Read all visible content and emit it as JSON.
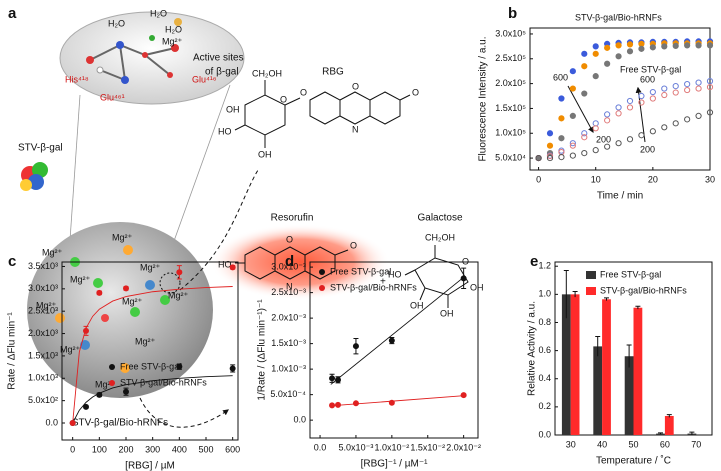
{
  "schematic": {
    "panel": "a",
    "water": [
      "H₂O",
      "H₂O",
      "H₂O"
    ],
    "metal": "Mg²⁺",
    "residues": [
      "His⁴¹⁸",
      "Glu⁴⁶¹",
      "Glu⁴¹⁶"
    ],
    "active_sites": [
      "Active sites",
      "of β-gal"
    ],
    "enzyme": "STV-β-gal",
    "mg_labels": [
      "Mg²⁺",
      "Mg²⁺",
      "Mg²⁺",
      "Mg²⁺",
      "Mg²⁺",
      "Mg²⁺",
      "Mg²⁺",
      "Mg²⁺",
      "Mg²⁺",
      "Mg²⁺"
    ],
    "carrier": "STV-β-gal/Bio-hRNFs",
    "substrate": "RBG",
    "product": "Resorufin",
    "sugar": "Galactose",
    "plus": "+",
    "rbg_atoms": [
      "CH₂OH",
      "HO",
      "OH",
      "O",
      "OH",
      "O",
      "O",
      "N",
      "O"
    ],
    "resorufin_atoms": [
      "HO",
      "O",
      "N",
      "O"
    ],
    "galactose_atoms": [
      "CH₂OH",
      "HO",
      "O",
      "OH",
      "OH",
      "OH"
    ]
  },
  "chart_data": [
    {
      "type": "line",
      "panel": "b",
      "xlabel": "Time / min",
      "ylabel": "Fluorescence Intensity / a.u.",
      "x": [
        0,
        2,
        4,
        6,
        8,
        10,
        12,
        14,
        16,
        18,
        20,
        22,
        24,
        26,
        28,
        30
      ],
      "xlim": [
        -1.5,
        30
      ],
      "xticks": [
        0,
        10,
        20,
        30
      ],
      "ylim": [
        26000,
        312000
      ],
      "yticks": [
        {
          "value": 50000,
          "label": "5.0x10⁴"
        },
        {
          "value": 100000,
          "label": "1.0x10⁵"
        },
        {
          "value": 150000,
          "label": "1.5x10⁵"
        },
        {
          "value": 200000,
          "label": "2.0x10⁵"
        },
        {
          "value": 250000,
          "label": "2.5x10⁵"
        },
        {
          "value": 300000,
          "label": "3.0x10⁵"
        }
      ],
      "annotations": [
        "STV-β-gal/Bio-hRNFs",
        "600",
        "200",
        "Free STV-β-gal",
        "600",
        "200"
      ],
      "series": [
        {
          "color": "#3b5bdb",
          "filled": true,
          "values": [
            50000,
            100000,
            170000,
            225000,
            260000,
            275000,
            280000,
            282000,
            283000,
            283000,
            284000,
            284000,
            284000,
            285000,
            285000,
            285000
          ]
        },
        {
          "color": "#f08c00",
          "filled": true,
          "values": [
            50000,
            75000,
            130000,
            190000,
            235000,
            260000,
            272000,
            277000,
            279000,
            280000,
            280000,
            281000,
            281000,
            281000,
            281000,
            281000
          ]
        },
        {
          "color": "#777777",
          "filled": true,
          "values": [
            50000,
            60000,
            90000,
            135000,
            180000,
            215000,
            240000,
            255000,
            265000,
            270000,
            273000,
            275000,
            276000,
            277000,
            277000,
            277000
          ]
        },
        {
          "color": "#6a7fd8",
          "filled": false,
          "values": [
            50000,
            55000,
            65000,
            80000,
            100000,
            120000,
            138000,
            152000,
            165000,
            175000,
            183000,
            190000,
            195000,
            199000,
            202000,
            205000
          ]
        },
        {
          "color": "#e07a7a",
          "filled": false,
          "values": [
            50000,
            54000,
            62000,
            75000,
            92000,
            110000,
            126000,
            140000,
            152000,
            162000,
            170000,
            177000,
            182000,
            187000,
            190000,
            193000
          ]
        },
        {
          "color": "#555555",
          "filled": false,
          "values": [
            50000,
            50000,
            52000,
            55000,
            60000,
            66000,
            73000,
            80000,
            88000,
            96000,
            104000,
            112000,
            120000,
            128000,
            135000,
            142000
          ]
        }
      ]
    },
    {
      "type": "scatter",
      "panel": "c",
      "xlabel": "[RBG] / µM",
      "ylabel": "Rate / ΔFlu min⁻¹",
      "x": [
        0,
        50,
        100,
        200,
        400,
        600
      ],
      "xlim": [
        -40,
        620
      ],
      "xticks": [
        0,
        100,
        200,
        300,
        400,
        500,
        600
      ],
      "ylim": [
        -380,
        3600
      ],
      "yticks": [
        {
          "value": 0,
          "label": "0.0"
        },
        {
          "value": 500,
          "label": "5.0x10²"
        },
        {
          "value": 1000,
          "label": "1.0x10³"
        },
        {
          "value": 1500,
          "label": "1.5x10³"
        },
        {
          "value": 2000,
          "label": "2.0x10³"
        },
        {
          "value": 2500,
          "label": "2.5x10³"
        },
        {
          "value": 3000,
          "label": "3.0x10³"
        },
        {
          "value": 3500,
          "label": "3.5x10³"
        }
      ],
      "fit_x": [
        0,
        25,
        50,
        75,
        100,
        150,
        200,
        300,
        400,
        500,
        600
      ],
      "series": [
        {
          "name": "Free STV-β-gal",
          "color": "#111111",
          "values": [
            0,
            360,
            630,
            700,
            1260,
            1220
          ],
          "errors": [
            0,
            30,
            40,
            80,
            60,
            80
          ],
          "fit": [
            0,
            286,
            462,
            581,
            667,
            783,
            857,
            946,
            1000,
            1035,
            1059
          ]
        },
        {
          "name": "STV-β-gal/Bio-hRNFs",
          "color": "#e02020",
          "values": [
            0,
            2060,
            2910,
            3010,
            3370,
            3480
          ],
          "errors": [
            0,
            100,
            40,
            40,
            150,
            40
          ],
          "fit": [
            0,
            1590,
            2120,
            2385,
            2544,
            2726,
            2827,
            2935,
            2993,
            3028,
            3052
          ]
        }
      ]
    },
    {
      "type": "scatter",
      "panel": "d",
      "xlabel": "[RBG]⁻¹ / µM⁻¹",
      "ylabel": "1/Rate / (ΔFlu min⁻¹)⁻¹",
      "x": [
        0.00167,
        0.0025,
        0.005,
        0.01,
        0.02
      ],
      "xlim": [
        -0.0014,
        0.022
      ],
      "xticks": [
        {
          "value": 0,
          "label": "0.0"
        },
        {
          "value": 0.005,
          "label": "5.0x10⁻³"
        },
        {
          "value": 0.01,
          "label": "1.0x10⁻²"
        },
        {
          "value": 0.015,
          "label": "1.5x10⁻²"
        },
        {
          "value": 0.02,
          "label": "2.0x10⁻²"
        }
      ],
      "ylim": [
        -0.00035,
        0.0031
      ],
      "yticks": [
        {
          "value": 0,
          "label": "0.0"
        },
        {
          "value": 0.0005,
          "label": "5.0x10⁻⁴"
        },
        {
          "value": 0.001,
          "label": "1.0x10⁻³"
        },
        {
          "value": 0.0015,
          "label": "1.5x10⁻³"
        },
        {
          "value": 0.002,
          "label": "2.0x10⁻³"
        },
        {
          "value": 0.0025,
          "label": "2.5x10⁻³"
        },
        {
          "value": 0.003,
          "label": "3.0x10⁻³"
        }
      ],
      "fit_x": [
        0.0015,
        0.02
      ],
      "series": [
        {
          "name": "Free STV-β-gal",
          "color": "#111111",
          "values": [
            0.00082,
            0.00079,
            0.00145,
            0.00156,
            0.00278
          ],
          "errors": [
            8e-05,
            6e-05,
            0.00015,
            6e-05,
            0.0002
          ],
          "fit": [
            0.0007,
            0.0028
          ]
        },
        {
          "name": "STV-β-gal/Bio-hRNFs",
          "color": "#e02020",
          "values": [
            0.00029,
            0.0003,
            0.00033,
            0.00034,
            0.00049
          ],
          "errors": [
            2e-05,
            2e-05,
            2e-05,
            2e-05,
            2e-05
          ],
          "fit": [
            0.00028,
            0.00048
          ]
        }
      ]
    },
    {
      "type": "bar",
      "panel": "e",
      "xlabel": "Temperature / ˚C",
      "ylabel": "Relative Activity / a.u.",
      "categories": [
        "30",
        "40",
        "50",
        "60",
        "70"
      ],
      "ylim": [
        0,
        1.23
      ],
      "yticks": [
        {
          "value": 0,
          "label": "0.0"
        },
        0.2,
        0.4,
        0.6,
        0.8,
        {
          "value": 1,
          "label": "1.0"
        },
        1.2
      ],
      "series": [
        {
          "name": "Free STV-β-gal",
          "color": "#333333",
          "values": [
            1.0,
            0.63,
            0.56,
            0.01,
            0.01
          ],
          "errors": [
            0.17,
            0.07,
            0.08,
            0.005,
            0.01
          ]
        },
        {
          "name": "STV-β-gal/Bio-hRNFs",
          "color": "#ff2a2a",
          "values": [
            1.0,
            0.965,
            0.905,
            0.135,
            0.0
          ],
          "errors": [
            0.02,
            0.01,
            0.01,
            0.01,
            0
          ]
        }
      ]
    }
  ]
}
